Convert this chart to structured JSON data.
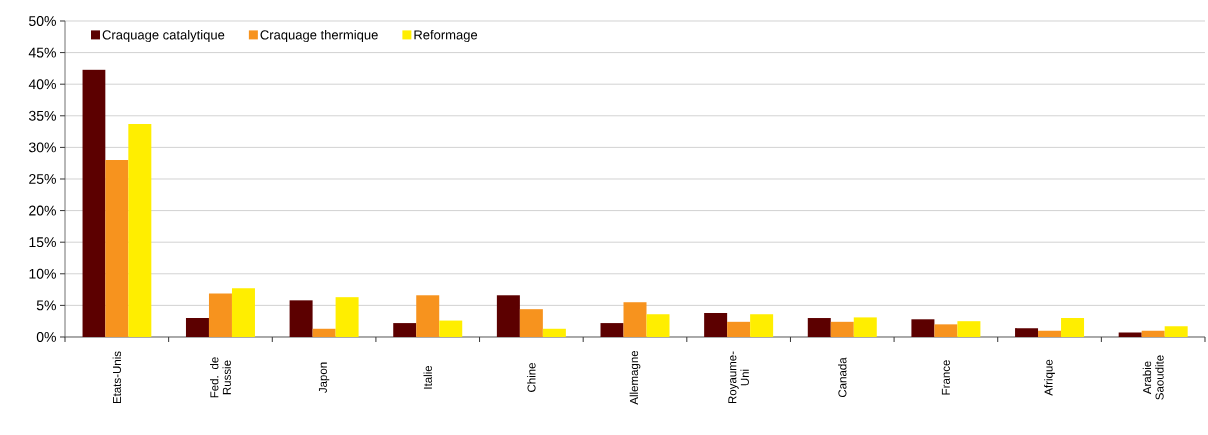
{
  "chart_data": {
    "type": "bar",
    "categories": [
      "Etats-Unis",
      "Fed. de Russie",
      "Japon",
      "Italie",
      "Chine",
      "Allemagne",
      "Royaume-Uni",
      "Canada",
      "France",
      "Afrique",
      "Arabie Saoudite"
    ],
    "series": [
      {
        "name": "Craquage catalytique",
        "color": "#5c0000",
        "values": [
          42.3,
          3.0,
          5.8,
          2.2,
          6.6,
          2.2,
          3.8,
          3.0,
          2.8,
          1.4,
          0.7
        ]
      },
      {
        "name": "Craquage thermique",
        "color": "#f7931e",
        "values": [
          28.0,
          6.9,
          1.3,
          6.6,
          4.4,
          5.5,
          2.4,
          2.4,
          2.0,
          1.0,
          1.0
        ]
      },
      {
        "name": "Reformage",
        "color": "#ffee00",
        "values": [
          33.7,
          7.7,
          6.3,
          2.6,
          1.3,
          3.6,
          3.6,
          3.1,
          2.5,
          3.0,
          1.7
        ]
      }
    ],
    "ylim": [
      0,
      50
    ],
    "yticks": [
      {
        "value": 0,
        "label": "0%"
      },
      {
        "value": 5,
        "label": "5%"
      },
      {
        "value": 10,
        "label": "10%"
      },
      {
        "value": 15,
        "label": "15%"
      },
      {
        "value": 20,
        "label": "20%"
      },
      {
        "value": 25,
        "label": "25%"
      },
      {
        "value": 30,
        "label": "30%"
      },
      {
        "value": 35,
        "label": "35%"
      },
      {
        "value": 40,
        "label": "40%"
      },
      {
        "value": 45,
        "label": "45%"
      },
      {
        "value": 50,
        "label": "50%"
      }
    ],
    "grid": "y",
    "legend": "top left"
  }
}
